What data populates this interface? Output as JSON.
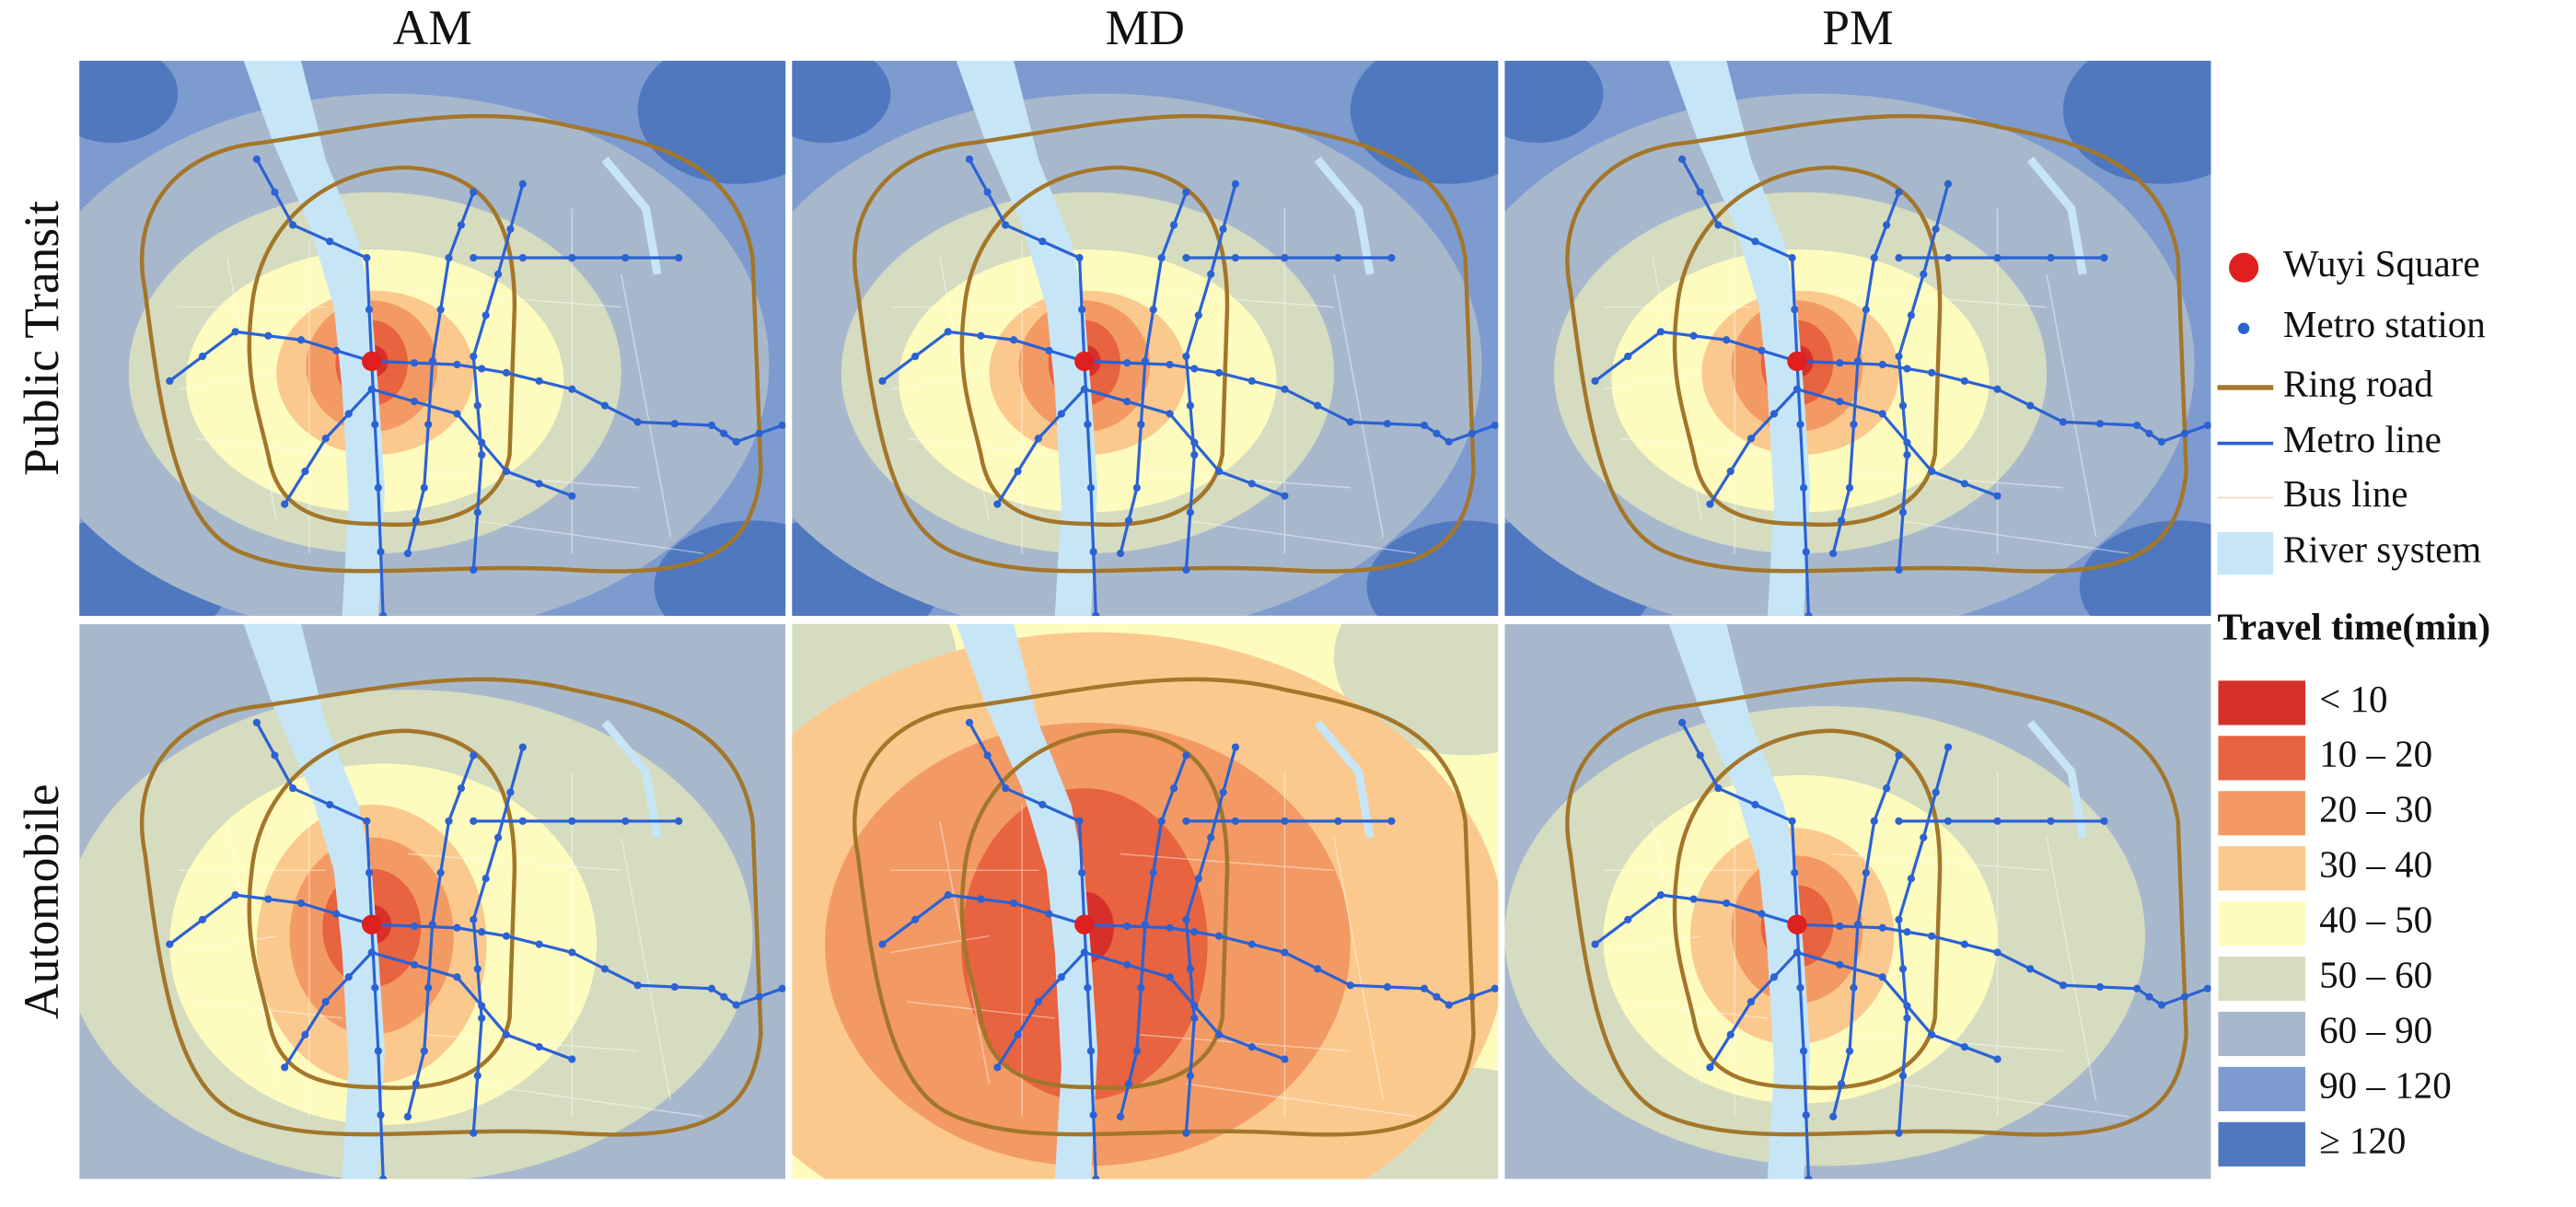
{
  "columns": [
    "AM",
    "MD",
    "PM"
  ],
  "rows": [
    "Public Transit",
    "Automobile"
  ],
  "legend": {
    "items": [
      "Wuyi Square",
      "Metro station",
      "Ring road",
      "Metro line",
      "Bus line",
      "River system"
    ],
    "travel_time_title": "Travel time(min)",
    "classes": [
      {
        "label": "< 10",
        "color": "#d7302a"
      },
      {
        "label": "10 – 20",
        "color": "#e8633f"
      },
      {
        "label": "20 – 30",
        "color": "#f39a64"
      },
      {
        "label": "30 – 40",
        "color": "#fbc98d"
      },
      {
        "label": "40 – 50",
        "color": "#fefbbe"
      },
      {
        "label": "50 – 60",
        "color": "#d6dcc0"
      },
      {
        "label": "60 – 90",
        "color": "#a8b8cc"
      },
      {
        "label": "90 – 120",
        "color": "#7d9bcf"
      },
      {
        "label": "≥ 120",
        "color": "#4f78bf"
      }
    ]
  }
}
